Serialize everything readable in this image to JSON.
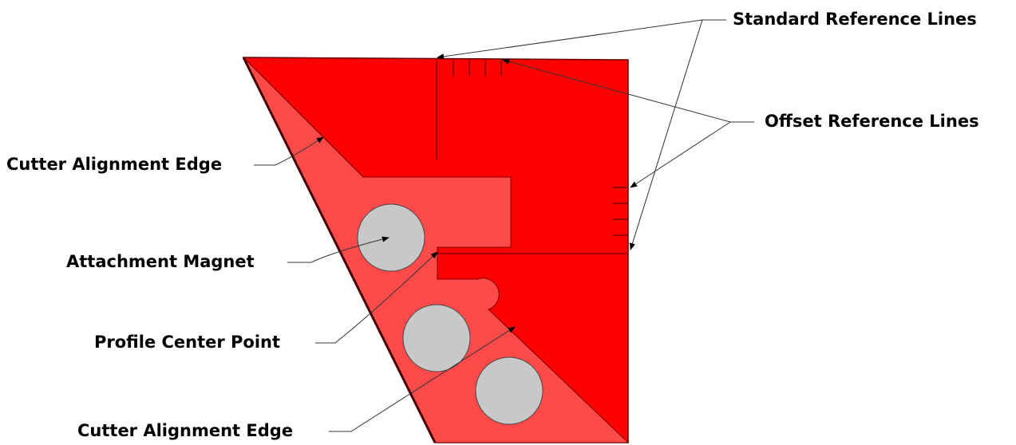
{
  "callouts": [
    "Standard Reference Lines",
    "Offset Reference Lines",
    "Cutter Alignment Edge",
    "Attachment Magnet",
    "Profile Center Point",
    "Cutter Alignment Edge"
  ]
}
